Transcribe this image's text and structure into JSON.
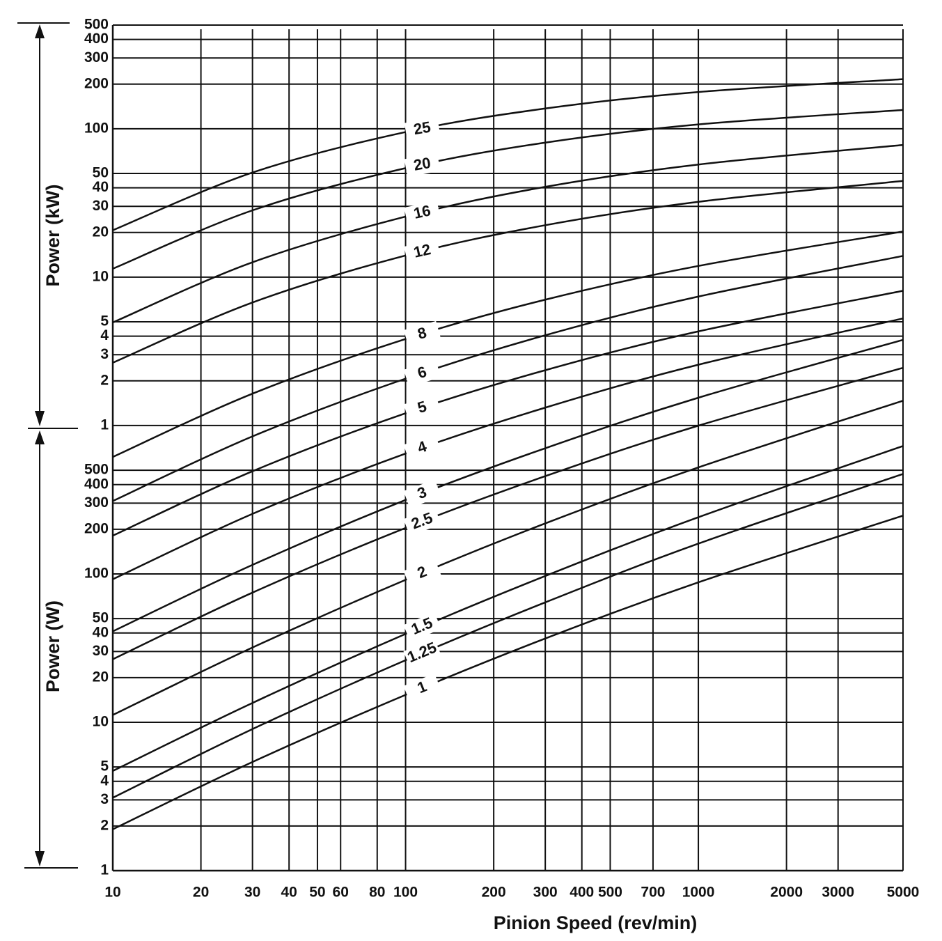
{
  "chart_data": {
    "type": "line",
    "xlabel": "Pinion Speed (rev/min)",
    "ylabels": [
      "Power (kW)",
      "Power (W)"
    ],
    "xscale": "log",
    "yscale": "log",
    "grid": true,
    "color": "#111111",
    "xlim": [
      10,
      5000
    ],
    "ylim": [
      1,
      500000
    ],
    "xticks": [
      10,
      20,
      30,
      40,
      50,
      60,
      80,
      100,
      200,
      300,
      400,
      500,
      700,
      1000,
      2000,
      3000,
      5000
    ],
    "yticks": [
      1,
      2,
      3,
      4,
      5,
      10,
      20,
      30,
      40,
      50,
      100,
      200,
      300,
      400,
      500,
      {
        "value": 1000,
        "label": "1"
      },
      {
        "value": 2000,
        "label": "2"
      },
      {
        "value": 3000,
        "label": "3"
      },
      {
        "value": 4000,
        "label": "4"
      },
      {
        "value": 5000,
        "label": "5"
      },
      {
        "value": 10000,
        "label": "10"
      },
      {
        "value": 20000,
        "label": "20"
      },
      {
        "value": 30000,
        "label": "30"
      },
      {
        "value": 40000,
        "label": "40"
      },
      {
        "value": 50000,
        "label": "50"
      },
      {
        "value": 100000,
        "label": "100"
      },
      {
        "value": 200000,
        "label": "200"
      },
      {
        "value": 300000,
        "label": "300"
      },
      {
        "value": 400000,
        "label": "400"
      },
      {
        "value": 500000,
        "label": "500"
      }
    ],
    "x": [
      10,
      30,
      100,
      300,
      1000,
      5000
    ],
    "series": [
      {
        "name": "1",
        "values": [
          1.9,
          5.4,
          15.3,
          36.7,
          87.7,
          247
        ]
      },
      {
        "name": "1.25",
        "values": [
          3.1,
          9.0,
          26.2,
          64.3,
          160,
          472
        ]
      },
      {
        "name": "1.5",
        "values": [
          4.7,
          13.5,
          39.4,
          96.8,
          241,
          728
        ]
      },
      {
        "name": "2",
        "values": [
          11.2,
          31.9,
          91.2,
          219,
          522,
          1470
        ]
      },
      {
        "name": "2.5",
        "values": [
          26.6,
          74.8,
          204,
          456,
          998,
          2450
        ]
      },
      {
        "name": "3",
        "values": [
          41,
          115,
          315,
          703,
          1540,
          3780
        ]
      },
      {
        "name": "4",
        "values": [
          92,
          254,
          647,
          1320,
          2570,
          5270
        ]
      },
      {
        "name": "5",
        "values": [
          181,
          492,
          1210,
          2360,
          4310,
          8090
        ]
      },
      {
        "name": "6",
        "values": [
          310,
          845,
          2070,
          4060,
          7400,
          13900
        ]
      },
      {
        "name": "8",
        "values": [
          614,
          1640,
          3830,
          7050,
          11900,
          20300
        ]
      },
      {
        "name": "12",
        "values": [
          2650,
          6750,
          14000,
          22400,
          32200,
          44500
        ]
      },
      {
        "name": "16",
        "values": [
          4950,
          12600,
          25600,
          40600,
          57400,
          77800
        ]
      },
      {
        "name": "20",
        "values": [
          11400,
          28200,
          54300,
          80700,
          107000,
          134000
        ]
      },
      {
        "name": "25",
        "values": [
          20700,
          50700,
          95100,
          137000,
          177000,
          216000
        ]
      }
    ]
  }
}
